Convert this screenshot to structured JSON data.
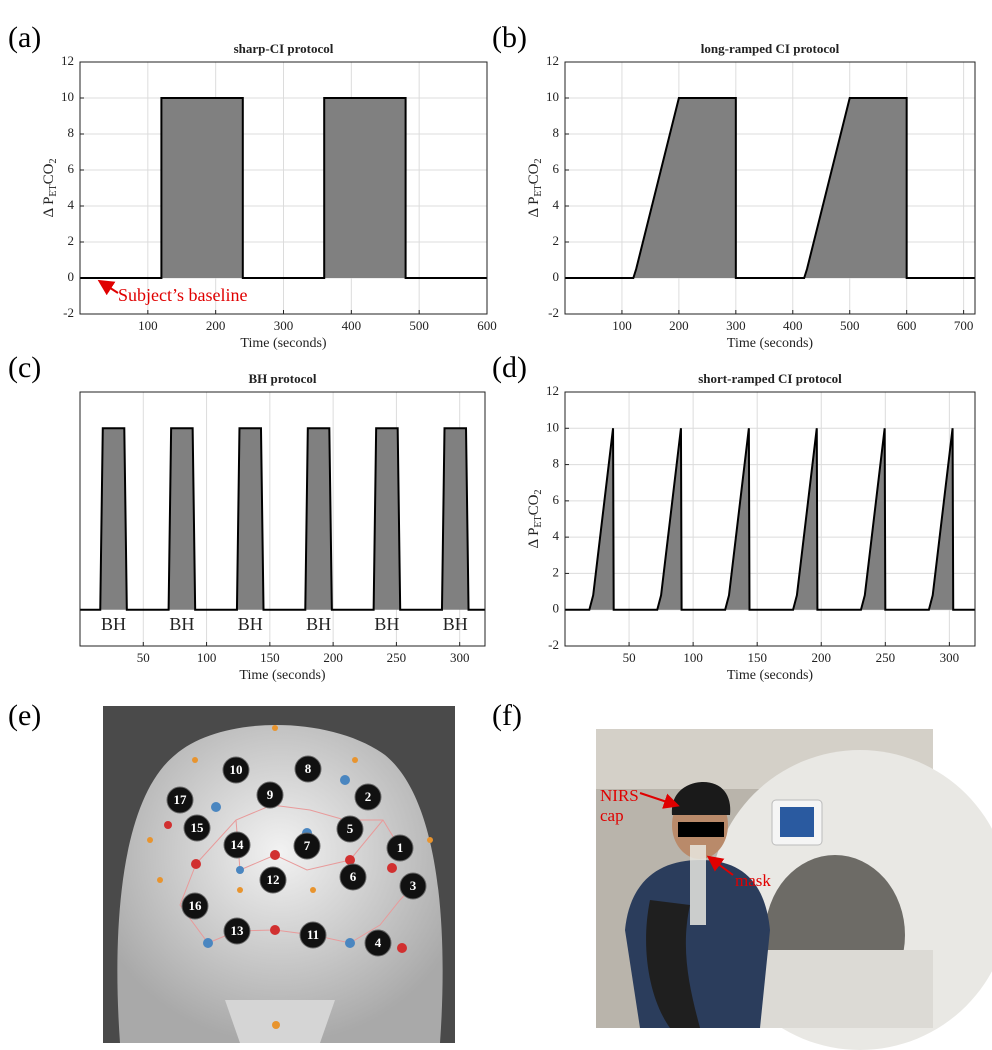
{
  "panels": [
    "(a)",
    "(b)",
    "(c)",
    "(d)",
    "(e)",
    "(f)"
  ],
  "chart_data": [
    {
      "type": "line",
      "title": "sharp-CI protocol",
      "xlabel": "Time (seconds)",
      "ylabel": {
        "main": "Δ P",
        "sub1": "ET",
        "mid": "CO",
        "sub2": "2"
      },
      "x": [
        0,
        120,
        120,
        240,
        240,
        360,
        360,
        480,
        480,
        600
      ],
      "values": [
        0,
        0,
        10,
        10,
        0,
        0,
        10,
        10,
        0,
        0
      ],
      "color": "#000000",
      "fill": "#808080",
      "xlim": [
        0,
        600
      ],
      "xticks": [
        100,
        200,
        300,
        400,
        500,
        600
      ],
      "ylim": [
        -2,
        12
      ],
      "yticks": [
        -2,
        0,
        2,
        4,
        6,
        8,
        10,
        12
      ],
      "grid": true,
      "annotations": [
        "Subject’s baseline"
      ]
    },
    {
      "type": "line",
      "title": "long-ramped CI protocol",
      "xlabel": "Time (seconds)",
      "ylabel": {
        "main": "Δ P",
        "sub1": "ET",
        "mid": "CO",
        "sub2": "2"
      },
      "x": [
        0,
        120,
        125,
        200,
        300,
        300,
        420,
        425,
        500,
        600,
        600,
        720
      ],
      "values": [
        0,
        0,
        0.5,
        10,
        10,
        0,
        0,
        0.5,
        10,
        10,
        0,
        0
      ],
      "color": "#000000",
      "fill": "#808080",
      "xlim": [
        0,
        720
      ],
      "xticks": [
        100,
        200,
        300,
        400,
        500,
        600,
        700
      ],
      "ylim": [
        -2,
        12
      ],
      "yticks": [
        -2,
        0,
        2,
        4,
        6,
        8,
        10,
        12
      ],
      "grid": true
    },
    {
      "type": "line",
      "title": "BH protocol",
      "xlabel": "Time (seconds)",
      "x": [
        0,
        16,
        18,
        35,
        37,
        70,
        72,
        89,
        91,
        124,
        126,
        143,
        145,
        178,
        180,
        197,
        199,
        232,
        234,
        251,
        253,
        286,
        288,
        305,
        307,
        320
      ],
      "values": [
        0,
        0,
        10,
        10,
        0,
        0,
        10,
        10,
        0,
        0,
        10,
        10,
        0,
        0,
        10,
        10,
        0,
        0,
        10,
        10,
        0,
        0,
        10,
        10,
        0,
        0
      ],
      "color": "#000000",
      "fill": "#808080",
      "xlim": [
        0,
        320
      ],
      "xticks": [
        50,
        100,
        150,
        200,
        250,
        300
      ],
      "ylim": [
        -2,
        12
      ],
      "grid": true,
      "annotations": [
        "BH",
        "BH",
        "BH",
        "BH",
        "BH",
        "BH"
      ]
    },
    {
      "type": "line",
      "title": "short-ramped CI protocol",
      "xlabel": "Time (seconds)",
      "ylabel": {
        "main": "Δ P",
        "sub1": "ET",
        "mid": "CO",
        "sub2": "2"
      },
      "x": [
        0,
        19,
        22,
        37.5,
        38,
        72,
        75,
        90.5,
        91,
        125,
        128,
        143.5,
        144,
        178,
        181,
        196.5,
        197,
        231,
        234,
        249.5,
        250,
        284,
        287,
        302.5,
        303,
        320
      ],
      "values": [
        0,
        0,
        0.8,
        10,
        0,
        0,
        0.8,
        10,
        0,
        0,
        0.8,
        10,
        0,
        0,
        0.8,
        10,
        0,
        0,
        0.8,
        10,
        0,
        0,
        0.8,
        10,
        0,
        0
      ],
      "color": "#000000",
      "fill": "#808080",
      "xlim": [
        0,
        320
      ],
      "xticks": [
        50,
        100,
        150,
        200,
        250,
        300
      ],
      "ylim": [
        -2,
        12
      ],
      "yticks": [
        -2,
        0,
        2,
        4,
        6,
        8,
        10,
        12
      ],
      "grid": true
    }
  ],
  "electrode_map": {
    "labels": [
      "1",
      "2",
      "3",
      "4",
      "5",
      "6",
      "7",
      "8",
      "9",
      "10",
      "11",
      "12",
      "13",
      "14",
      "15",
      "16",
      "17"
    ]
  },
  "photo": {
    "cap_label": [
      "NIRS",
      "cap"
    ],
    "mask_label": "mask"
  }
}
